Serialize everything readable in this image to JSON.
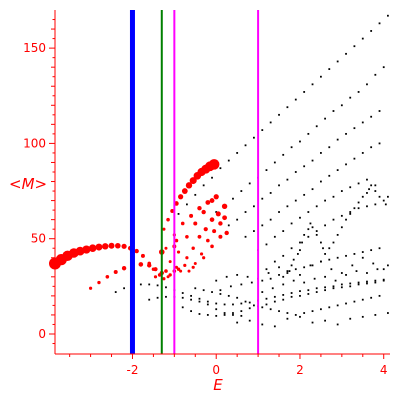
{
  "chart_data": {
    "type": "scatter",
    "xlabel": "E",
    "ylabel": "<M>",
    "xlim": [
      -3.85,
      4.15
    ],
    "ylim": [
      -10.5,
      170
    ],
    "x_ticks": [
      -2,
      0,
      2,
      4
    ],
    "y_ticks": [
      0,
      50,
      100,
      150
    ],
    "x_tick_labels": [
      "-2",
      "0",
      "2",
      "4"
    ],
    "y_tick_labels": [
      "0",
      "50",
      "100",
      "150"
    ],
    "grid": false,
    "colors": {
      "axes": "#ff0000",
      "black_points": "#000000",
      "red_points": "#ff0000",
      "line_blue": "#0000ff",
      "line_green": "#008000",
      "line_magenta": "#ff00ff"
    },
    "vertical_lines": [
      {
        "x": -2.0,
        "color": "#0000ff",
        "style": "thick"
      },
      {
        "x": -1.3,
        "color": "#008000",
        "style": "thin"
      },
      {
        "x": -1.0,
        "color": "#ff00ff",
        "style": "thin"
      },
      {
        "x": 1.0,
        "color": "#ff00ff",
        "style": "thin"
      }
    ],
    "red_series": [
      {
        "x": [
          -3.85,
          -3.7,
          -3.55,
          -3.4,
          -3.25,
          -3.1,
          -2.95,
          -2.8,
          -2.65,
          -2.5,
          -2.35,
          -2.2,
          -2.05,
          -1.9,
          -1.75,
          -1.6,
          -1.5
        ],
        "y": [
          37,
          39,
          41,
          42.5,
          43.5,
          44.3,
          45,
          45.6,
          46,
          46.3,
          46.3,
          46,
          45,
          43.5,
          41,
          37,
          34
        ],
        "size": [
          6,
          5.6,
          5.2,
          4.8,
          4.4,
          4.1,
          3.8,
          3.5,
          3.2,
          3,
          2.8,
          2.6,
          2.4,
          2.2,
          2,
          1.8,
          1.7
        ]
      },
      {
        "x": [
          -3.0,
          -2.8,
          -2.6,
          -2.4,
          -2.2,
          -2.0,
          -1.8,
          -1.6,
          -1.45
        ],
        "y": [
          24,
          27,
          30,
          32.5,
          34.5,
          36,
          36.5,
          36,
          34
        ],
        "size": [
          1.6,
          1.7,
          1.8,
          2,
          2.2,
          2.3,
          2.3,
          2.2,
          2.1
        ]
      },
      {
        "x": [
          -1.25,
          -1.15,
          -1.05,
          -0.95,
          -0.85,
          -0.75,
          -0.65,
          -0.55,
          -0.45,
          -0.35,
          -0.25,
          -0.15,
          -0.05
        ],
        "y": [
          55,
          60,
          64.5,
          68.5,
          72,
          75,
          78,
          80.5,
          83,
          85,
          86.5,
          88,
          89
        ],
        "size": [
          1.6,
          1.8,
          2,
          2.3,
          2.6,
          2.9,
          3.2,
          3.5,
          3.8,
          4.1,
          4.5,
          4.9,
          5.3
        ]
      },
      {
        "x": [
          -1.2,
          -1.0,
          -0.8,
          -0.6,
          -0.4,
          -0.2,
          0.0
        ],
        "y": [
          45,
          52,
          58,
          62,
          66,
          69,
          72
        ],
        "size": [
          1.5,
          1.6,
          1.8,
          2,
          2.2,
          2.4,
          2.6
        ]
      },
      {
        "x": [
          -1.1,
          -0.9,
          -0.7,
          -0.5,
          -0.3,
          -0.1
        ],
        "y": [
          38,
          43,
          51,
          58,
          64,
          70
        ],
        "size": [
          1.5,
          1.6,
          1.8,
          2,
          2.2,
          2.4
        ]
      },
      {
        "x": [
          -0.7,
          -0.55,
          -0.4,
          -0.25,
          -0.1,
          0.05,
          0.2
        ],
        "y": [
          40,
          45,
          51,
          55,
          60,
          63,
          67
        ],
        "size": [
          1.6,
          1.7,
          1.9,
          2.1,
          2.3,
          2.5,
          2.7
        ]
      },
      {
        "x": [
          -0.5,
          -0.35,
          -0.2,
          -0.05,
          0.1,
          0.2
        ],
        "y": [
          37,
          42,
          49,
          54,
          58,
          61
        ],
        "size": [
          1.5,
          1.6,
          1.8,
          2,
          2.2,
          2.4
        ]
      },
      {
        "x": [
          -0.3,
          -0.1,
          0.1,
          0.25
        ],
        "y": [
          40,
          46,
          51,
          53
        ],
        "size": [
          1.6,
          1.8,
          2,
          2.2
        ]
      },
      {
        "x": [
          -1.45,
          -1.35,
          -1.3,
          -1.25,
          -1.2,
          -1.15,
          -1.1,
          -1.0,
          -0.95,
          -0.9,
          -0.85,
          -0.75,
          -0.65,
          -0.55
        ],
        "y": [
          30,
          31,
          32,
          29,
          33,
          30,
          31,
          33,
          35,
          34,
          33,
          36,
          33,
          35
        ],
        "size": [
          1.6,
          1.8,
          2.2,
          1.6,
          1.8,
          1.5,
          1.7,
          1.8,
          1.6,
          1.7,
          1.5,
          1.6,
          1.5,
          1.6
        ]
      },
      {
        "x": [
          -1.3,
          -1.0,
          -0.95
        ],
        "y": [
          43,
          46,
          49
        ],
        "size": [
          2.8,
          2.0,
          1.8
        ]
      }
    ],
    "black_series": [
      {
        "x": [
          -0.9,
          -0.7,
          -0.5,
          -0.3,
          -0.1,
          0.1,
          0.3,
          0.5,
          0.7,
          0.9,
          1.1,
          1.3,
          1.5,
          1.7,
          1.9,
          2.1,
          2.3,
          2.5,
          2.7,
          2.9,
          3.1,
          3.3,
          3.5,
          3.7,
          3.9,
          4.1
        ],
        "y": [
          63,
          68,
          73,
          78,
          82,
          87,
          91,
          95,
          99,
          103,
          107,
          111,
          115,
          119,
          123,
          127,
          131,
          135,
          139,
          143,
          147,
          151,
          155,
          159,
          163,
          167
        ]
      },
      {
        "x": [
          0.0,
          0.2,
          0.4,
          0.6,
          0.8,
          1.0,
          1.2,
          1.4,
          1.6,
          1.8,
          2.0,
          2.2,
          2.4,
          2.6,
          2.8,
          3.0,
          3.2,
          3.4,
          3.6,
          3.8,
          4.0
        ],
        "y": [
          64,
          67,
          71,
          75,
          79,
          82,
          86,
          90,
          94,
          98,
          101,
          105,
          109,
          113,
          117,
          120,
          124,
          127,
          131,
          136,
          140
        ]
      },
      {
        "x": [
          0.3,
          0.5,
          0.7,
          0.9,
          1.1,
          1.3,
          1.5,
          1.7,
          1.9,
          2.1,
          2.3,
          2.5,
          2.7,
          2.9,
          3.1,
          3.3,
          3.5,
          3.7,
          3.9
        ],
        "y": [
          57,
          60,
          64,
          67,
          71,
          74,
          78,
          81,
          85,
          88,
          91,
          95,
          98,
          102,
          105,
          108,
          111,
          114,
          117
        ]
      },
      {
        "x": [
          0.7,
          0.9,
          1.1,
          1.3,
          1.5,
          1.7,
          1.9,
          2.1,
          2.3,
          2.5,
          2.7,
          2.9,
          3.1,
          3.3,
          3.5,
          3.7,
          3.9
        ],
        "y": [
          51,
          54,
          57,
          60,
          64,
          67,
          70,
          73,
          76,
          80,
          83,
          86,
          89,
          92,
          95,
          98,
          100
        ]
      },
      {
        "x": [
          1.0,
          1.2,
          1.4,
          1.6,
          1.8,
          2.0,
          2.2,
          2.4,
          2.6,
          2.8,
          3.0,
          3.2,
          3.4,
          3.6,
          3.8
        ],
        "y": [
          44,
          47,
          51,
          54,
          58,
          61,
          64,
          67,
          70,
          72,
          75,
          77,
          79,
          81,
          78
        ]
      },
      {
        "x": [
          1.2,
          1.4,
          1.6,
          1.8,
          2.0,
          2.2,
          2.4,
          2.6,
          2.8,
          3.0,
          3.2,
          3.4,
          3.6,
          3.8
        ],
        "y": [
          34,
          38,
          41,
          45,
          48,
          51,
          54,
          57,
          60,
          62,
          64,
          66,
          67,
          68
        ]
      },
      {
        "x": [
          -2.4,
          -2.2,
          -2.0,
          -1.8,
          -1.6,
          -1.4,
          -1.2,
          -1.0,
          -0.8,
          -0.6,
          -0.4,
          -0.2,
          0.0,
          0.2,
          0.4,
          0.6,
          0.8,
          1.0,
          1.2,
          1.4,
          1.6,
          1.8,
          2.0,
          2.2,
          2.4,
          2.6,
          2.8,
          3.0,
          3.2,
          3.4,
          3.6,
          3.8,
          4.0
        ],
        "y": [
          22,
          24,
          25.5,
          26,
          26,
          25.5,
          24.5,
          23,
          21.5,
          20,
          18.5,
          17,
          16,
          15.5,
          15.5,
          16,
          16.5,
          17.5,
          18.5,
          19.5,
          20.5,
          21.5,
          22.5,
          23,
          24,
          24.5,
          25,
          26,
          26.5,
          27,
          27.5,
          28,
          28.5
        ]
      },
      {
        "x": [
          -1.6,
          -1.4,
          -1.2,
          -1.0,
          -0.8,
          -0.6,
          -0.4,
          -0.2,
          0.0,
          0.2,
          0.4,
          0.6
        ],
        "y": [
          18,
          19,
          19.5,
          19.5,
          19,
          18,
          17,
          15.5,
          13,
          11,
          10,
          9.5
        ]
      },
      {
        "x": [
          1.6,
          1.7,
          1.8,
          1.85,
          1.95,
          2.0,
          2.05,
          2.1,
          2.2,
          2.25,
          2.3,
          2.4,
          2.5,
          2.55,
          2.6,
          2.7,
          2.8,
          2.9,
          3.0,
          3.1,
          3.2,
          3.3,
          3.4,
          3.5,
          3.6,
          3.65,
          3.7,
          3.8,
          3.9,
          4.0,
          4.05,
          4.1
        ],
        "y": [
          30,
          33,
          36,
          39,
          42,
          44,
          48,
          52,
          55,
          58,
          56,
          52,
          48,
          45,
          42,
          45,
          48,
          52,
          56,
          60,
          63,
          66,
          69,
          72,
          74,
          76,
          78,
          75,
          72,
          70,
          68,
          72
        ]
      },
      {
        "x": [
          -0.8,
          -0.6,
          -0.4,
          -0.2,
          0.0,
          0.2,
          0.4,
          0.6,
          0.8,
          1.0,
          1.2,
          1.4,
          1.6,
          1.8,
          2.0,
          2.2,
          2.4,
          2.6,
          2.8,
          3.0,
          3.2,
          3.4,
          3.6,
          3.8,
          4.0
        ],
        "y": [
          14,
          12,
          10.5,
          10,
          9.5,
          10,
          11,
          12,
          13.5,
          14.5,
          15.5,
          17,
          18,
          19.5,
          20,
          21,
          22,
          23,
          24,
          24.5,
          25,
          26,
          26.5,
          27,
          28
        ]
      },
      {
        "x": [
          1.1,
          1.3,
          1.5,
          1.7,
          1.9,
          2.1,
          2.3,
          2.5,
          2.7,
          2.9,
          3.1,
          3.3,
          3.5,
          3.7,
          3.9
        ],
        "y": [
          28,
          29,
          31,
          32,
          34,
          35,
          36,
          38,
          39,
          40,
          41,
          42,
          43,
          44,
          45
        ]
      },
      {
        "x": [
          -0.5,
          -0.3,
          -0.1,
          0.1,
          0.3,
          0.5,
          0.7,
          0.9,
          1.1,
          1.3,
          1.5,
          1.7,
          1.9,
          2.1,
          2.3,
          2.5,
          2.7,
          2.9,
          3.1,
          3.3,
          3.5,
          3.7,
          3.9
        ],
        "y": [
          24,
          23,
          22,
          21,
          20,
          19,
          17,
          15,
          14,
          13,
          12,
          11,
          10,
          11,
          12,
          13,
          14,
          15,
          16,
          17,
          18,
          19,
          20
        ]
      },
      {
        "x": [
          0.0,
          0.25,
          0.5,
          0.75,
          1.0,
          1.25,
          1.5,
          1.75,
          2.0,
          2.25,
          2.5,
          2.75,
          3.0,
          3.25,
          3.5,
          3.75,
          4.0
        ],
        "y": [
          28,
          30,
          31,
          30,
          29,
          32,
          35,
          33,
          31,
          36,
          38,
          34,
          32,
          36,
          40,
          37,
          34
        ]
      },
      {
        "x": [
          0.1,
          0.35,
          0.6,
          0.85,
          1.1,
          1.35,
          1.6,
          1.85,
          2.1,
          2.35,
          2.6,
          2.85,
          3.1,
          3.35,
          3.6,
          3.85,
          4.1
        ],
        "y": [
          23,
          25,
          26,
          27,
          22,
          24,
          26,
          28,
          27,
          29,
          30,
          28,
          31,
          33,
          32,
          34,
          36
        ]
      },
      {
        "x": [
          0.5,
          0.8,
          1.1,
          1.4,
          1.7,
          2.0,
          2.3,
          2.6,
          2.9,
          3.2,
          3.5,
          3.8,
          4.1
        ],
        "y": [
          6,
          7,
          5,
          4,
          8,
          9,
          6,
          7,
          5,
          8,
          9,
          10,
          11
        ]
      }
    ]
  }
}
